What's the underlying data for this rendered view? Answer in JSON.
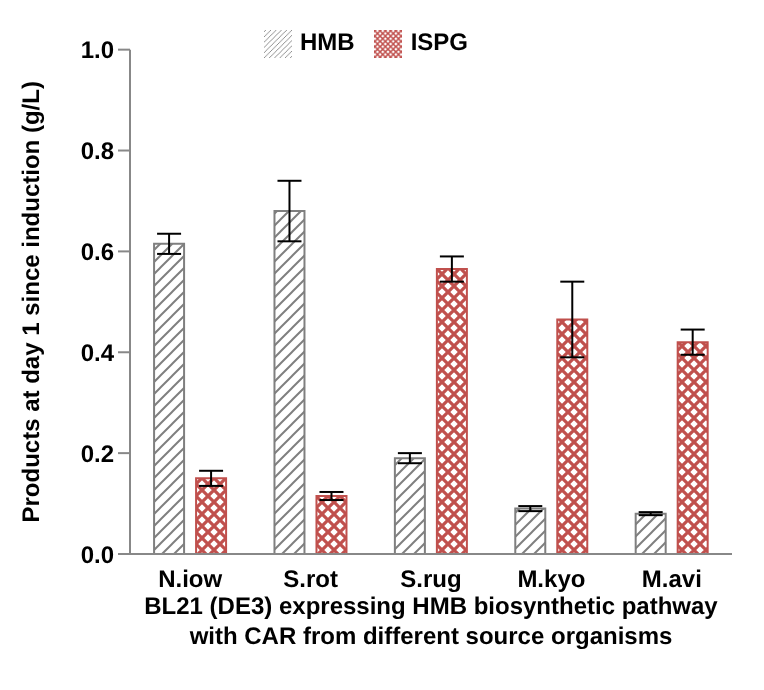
{
  "chart_data": {
    "type": "bar",
    "xlabel": "BL21 (DE3) expressing HMB biosynthetic pathway\nwith CAR from different source organisms",
    "ylabel": "Products at day 1 since induction (g/L)",
    "categories": [
      "N.iow",
      "S.rot",
      "S.rug",
      "M.kyo",
      "M.avi"
    ],
    "series": [
      {
        "name": "HMB",
        "color": "#7f7f7f",
        "values": [
          0.615,
          0.68,
          0.19,
          0.09,
          0.08
        ],
        "errors": [
          0.02,
          0.06,
          0.01,
          0.005,
          0.003
        ]
      },
      {
        "name": "ISPG",
        "color": "#c0504d",
        "values": [
          0.15,
          0.115,
          0.565,
          0.465,
          0.42
        ],
        "errors": [
          0.015,
          0.008,
          0.025,
          0.075,
          0.025
        ]
      }
    ],
    "ylim": [
      0,
      1
    ],
    "yticks": [
      {
        "value": 0,
        "label": "0.0"
      },
      {
        "value": 0.2,
        "label": "0.2"
      },
      {
        "value": 0.4,
        "label": "0.4"
      },
      {
        "value": 0.6,
        "label": "0.6"
      },
      {
        "value": 0.8,
        "label": "0.8"
      },
      {
        "value": 1,
        "label": "1.0"
      }
    ],
    "grid": false,
    "legend": "top"
  }
}
